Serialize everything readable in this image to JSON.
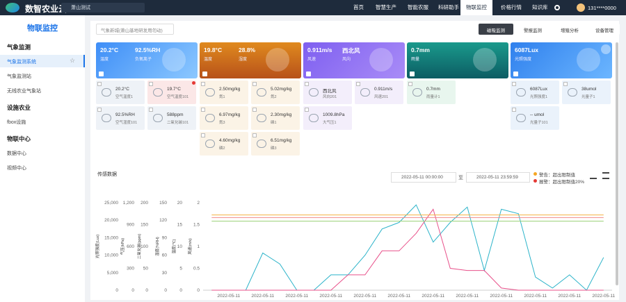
{
  "nav": {
    "logo": "数智农业云",
    "site": "萧山测试",
    "menu": [
      "首页",
      "智慧生产",
      "智能农服",
      "科研助手",
      "物联监控",
      "价格行情",
      "知识库"
    ],
    "user": "131****0000"
  },
  "sidebar": {
    "title": "物联监控",
    "groups": [
      {
        "heading": "气象监测",
        "items": [
          "气象监测系统",
          "气象监测站",
          "无线农业气象站"
        ]
      },
      {
        "heading": "设施农业",
        "items": [
          "fbox设施"
        ]
      },
      {
        "heading": "物联中心",
        "items": [
          "数据中心",
          "视频中心"
        ]
      }
    ]
  },
  "toolbar": {
    "station": "气象新城(萧山基地研发用勿动)",
    "buttons": [
      "磁吸监测",
      "警报监测",
      "增殖分析",
      "设备管理"
    ]
  },
  "cards": [
    {
      "headline": [
        "20.2°C",
        "92.5%RH"
      ],
      "captions": [
        "温度",
        "负氧离子"
      ],
      "sensors": [
        {
          "value": "20.2°C",
          "name": "空气温度1"
        },
        {
          "value": "19.7°C",
          "name": "空气温度101"
        },
        {
          "value": "92.5%RH",
          "name": "空气湿度101"
        },
        {
          "value": "588ppm",
          "name": "二氧化碳101"
        }
      ]
    },
    {
      "headline": [
        "19.8°C",
        "28.8%"
      ],
      "captions": [
        "温度",
        "湿度"
      ],
      "sensors": [
        {
          "value": "2.50mg/kg",
          "name": "氮1"
        },
        {
          "value": "5.02mg/kg",
          "name": "氮2"
        },
        {
          "value": "6.97mg/kg",
          "name": "氮3"
        },
        {
          "value": "2.30mg/kg",
          "name": "磷1"
        },
        {
          "value": "4.60mg/kg",
          "name": "磷2"
        },
        {
          "value": "6.51mg/kg",
          "name": "磷3"
        }
      ]
    },
    {
      "headline": [
        "0.911m/s",
        "西北风"
      ],
      "captions": [
        "风速",
        "风向"
      ],
      "sensors": [
        {
          "value": "西北风",
          "name": "风向201"
        },
        {
          "value": "0.911m/s",
          "name": "风速201"
        },
        {
          "value": "1009.8hPa",
          "name": "大气压1"
        }
      ]
    },
    {
      "headline": [
        "0.7mm"
      ],
      "captions": [
        "雨量"
      ],
      "sensors": [
        {
          "value": "0.7mm",
          "name": "雨量计1"
        }
      ]
    },
    {
      "headline": [
        "6087Lux"
      ],
      "captions": [
        "光照强度"
      ],
      "sensors": [
        {
          "value": "6087Lux",
          "name": "光照强度1"
        },
        {
          "value": "38umol",
          "name": "光量子1"
        },
        {
          "value": "-- umol",
          "name": "光量子101"
        }
      ]
    }
  ],
  "chart_section": {
    "title": "传感数据",
    "start": "2022-05-11 00:00:00",
    "to": "至",
    "end": "2022-05-11 23:59:59",
    "legend": [
      "警告：超出限制值",
      "报警：超出限制值20%"
    ]
  },
  "chart_data": {
    "type": "line",
    "categories": [
      null,
      "2022-05-11",
      null,
      "2022-05-11",
      null,
      "2022-05-11",
      null,
      "2022-05-11",
      null,
      "2022-05-11",
      null,
      "2022-05-11",
      null,
      "2022-05-11",
      null,
      "2022-05-11",
      null,
      "2022-05-11",
      null,
      "2022-05-11",
      null,
      "2022-05-11",
      null,
      "2022-05-11"
    ],
    "yaxes": [
      {
        "label": "光照强度(Lux)",
        "ylim": [
          0,
          25000
        ],
        "yticks": [
          0,
          {
            "value": 5000,
            "label": "5,000"
          },
          {
            "value": 10000,
            "label": "10,000"
          },
          {
            "value": 15000,
            "label": "15,000"
          },
          {
            "value": 20000,
            "label": "20,000"
          },
          {
            "value": 25000,
            "label": "25,000"
          }
        ]
      },
      {
        "label": "气压(kPa)",
        "ylim": [
          0,
          1200
        ],
        "yticks": [
          0,
          300,
          600,
          900,
          {
            "value": 1200,
            "label": "1,200"
          }
        ]
      },
      {
        "label": "二氧化碳(ppm)",
        "ylim": [
          0,
          200
        ],
        "yticks": [
          0,
          50,
          100,
          150,
          200
        ]
      },
      {
        "label": "湿度(%RH)",
        "ylim": [
          0,
          150
        ],
        "yticks": [
          0,
          30,
          60,
          90,
          120,
          150
        ]
      },
      {
        "label": "温度(℃)",
        "ylim": [
          0,
          20
        ],
        "yticks": [
          0,
          5,
          10,
          15,
          20
        ]
      },
      {
        "label": "风速(m/s)",
        "ylim": [
          0,
          2
        ],
        "yticks": [
          0,
          0.5,
          1,
          1.5,
          2
        ]
      }
    ],
    "series": [
      {
        "color": "#2bb3c9",
        "axis": 5,
        "values": [
          0,
          0,
          0,
          0.85,
          0.6,
          0,
          0,
          0.35,
          0.35,
          0.8,
          1.4,
          1.55,
          1.95,
          1.1,
          1.55,
          1.9,
          0.45,
          1.85,
          1.75,
          0.3,
          0.05,
          0.35,
          0,
          0.75
        ]
      },
      {
        "color": "#e8508a",
        "axis": 5,
        "values": [
          0,
          0,
          0,
          0,
          0,
          0,
          0,
          0,
          0.35,
          0.35,
          0.9,
          0.9,
          1.3,
          1.85,
          0.5,
          0.45,
          0.45,
          0.05,
          0,
          0,
          0,
          0,
          0,
          0
        ]
      },
      {
        "color": "#f5b041",
        "axis": 5,
        "values": [
          1.72,
          1.72,
          1.72,
          1.72,
          1.72,
          1.72,
          1.72,
          1.72,
          1.72,
          1.72,
          1.72,
          1.72,
          1.72,
          1.72,
          1.72,
          1.72,
          1.72,
          1.72,
          1.72,
          1.72,
          1.72,
          1.72,
          1.72,
          1.72
        ]
      },
      {
        "color": "#f08a8a",
        "axis": 5,
        "values": [
          1.66,
          1.66,
          1.66,
          1.66,
          1.66,
          1.66,
          1.66,
          1.66,
          1.66,
          1.66,
          1.66,
          1.66,
          1.66,
          1.66,
          1.66,
          1.66,
          1.66,
          1.66,
          1.66,
          1.66,
          1.66,
          1.66,
          1.66,
          1.66
        ]
      },
      {
        "color": "#9bd27a",
        "axis": 5,
        "values": [
          1.58,
          1.58,
          1.58,
          1.58,
          1.58,
          1.58,
          1.58,
          1.58,
          1.58,
          1.58,
          1.58,
          1.58,
          1.58,
          1.58,
          1.58,
          1.58,
          1.58,
          1.58,
          1.58,
          1.58,
          1.58,
          1.58,
          1.58,
          1.58
        ]
      }
    ]
  }
}
